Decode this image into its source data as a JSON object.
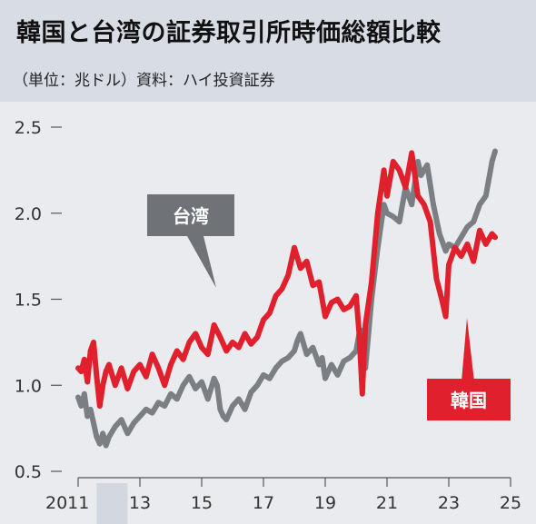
{
  "header": {
    "title": "韓国と台湾の証券取引所時価総額比較",
    "subtitle": "（単位：兆ドル）資料：ハイ投資証券"
  },
  "colors": {
    "korea": "#e0202c",
    "taiwan": "#7b7f84",
    "korea_box": "#e0202c",
    "taiwan_box": "#6f7377"
  },
  "chart_data": {
    "type": "line",
    "title": "韓国と台湾の証券取引所時価総額比較",
    "ylabel": "",
    "xlabel": "",
    "xlim": [
      2011,
      2025.2
    ],
    "ylim": [
      0.5,
      2.5
    ],
    "x_ticks": [
      2011,
      2013,
      2015,
      2017,
      2019,
      2021,
      2023,
      2025
    ],
    "x_tick_labels": [
      "2011",
      "13",
      "15",
      "17",
      "19",
      "21",
      "23",
      "25"
    ],
    "y_ticks": [
      0.5,
      1.0,
      1.5,
      2.0,
      2.5
    ],
    "y_tick_labels": [
      "0.5",
      "1.0",
      "1.5",
      "2.0",
      "2.5"
    ],
    "grid": false,
    "series": [
      {
        "name": "台湾",
        "x": [
          2011.0,
          2011.1,
          2011.2,
          2011.3,
          2011.4,
          2011.5,
          2011.6,
          2011.7,
          2011.8,
          2011.9,
          2012.0,
          2012.2,
          2012.4,
          2012.6,
          2012.8,
          2013.0,
          2013.2,
          2013.4,
          2013.6,
          2013.8,
          2014.0,
          2014.2,
          2014.4,
          2014.6,
          2014.8,
          2015.0,
          2015.2,
          2015.4,
          2015.5,
          2015.6,
          2015.7,
          2015.8,
          2016.0,
          2016.2,
          2016.4,
          2016.6,
          2016.8,
          2017.0,
          2017.2,
          2017.4,
          2017.6,
          2017.8,
          2018.0,
          2018.1,
          2018.2,
          2018.4,
          2018.6,
          2018.8,
          2018.9,
          2019.0,
          2019.2,
          2019.4,
          2019.6,
          2019.8,
          2020.0,
          2020.1,
          2020.2,
          2020.3,
          2020.5,
          2020.7,
          2020.9,
          2021.0,
          2021.2,
          2021.4,
          2021.6,
          2021.8,
          2022.0,
          2022.1,
          2022.3,
          2022.5,
          2022.7,
          2022.9,
          2023.0,
          2023.2,
          2023.4,
          2023.6,
          2023.8,
          2024.0,
          2024.2,
          2024.4,
          2024.5
        ],
        "values": [
          0.93,
          0.88,
          0.95,
          0.82,
          0.86,
          0.78,
          0.7,
          0.66,
          0.72,
          0.65,
          0.7,
          0.76,
          0.8,
          0.72,
          0.78,
          0.82,
          0.86,
          0.84,
          0.9,
          0.88,
          0.95,
          0.92,
          1.0,
          1.05,
          0.98,
          1.02,
          0.92,
          1.04,
          1.0,
          0.86,
          0.82,
          0.8,
          0.88,
          0.92,
          0.86,
          0.96,
          1.0,
          1.06,
          1.04,
          1.1,
          1.14,
          1.16,
          1.2,
          1.26,
          1.3,
          1.18,
          1.22,
          1.12,
          1.16,
          1.04,
          1.12,
          1.06,
          1.14,
          1.16,
          1.2,
          1.3,
          1.32,
          1.1,
          1.5,
          1.8,
          2.05,
          2.0,
          1.98,
          1.95,
          2.15,
          2.05,
          2.3,
          2.22,
          2.28,
          2.05,
          1.88,
          1.78,
          1.82,
          1.8,
          1.86,
          1.92,
          1.95,
          2.05,
          2.1,
          2.3,
          2.36
        ]
      },
      {
        "name": "韓国",
        "x": [
          2011.0,
          2011.1,
          2011.2,
          2011.3,
          2011.4,
          2011.5,
          2011.6,
          2011.7,
          2011.8,
          2011.9,
          2012.0,
          2012.2,
          2012.4,
          2012.6,
          2012.8,
          2013.0,
          2013.2,
          2013.4,
          2013.6,
          2013.8,
          2014.0,
          2014.2,
          2014.4,
          2014.6,
          2014.8,
          2015.0,
          2015.2,
          2015.4,
          2015.6,
          2015.8,
          2016.0,
          2016.2,
          2016.4,
          2016.6,
          2016.8,
          2017.0,
          2017.2,
          2017.4,
          2017.6,
          2017.8,
          2018.0,
          2018.2,
          2018.4,
          2018.6,
          2018.8,
          2019.0,
          2019.2,
          2019.4,
          2019.6,
          2019.8,
          2020.0,
          2020.1,
          2020.2,
          2020.3,
          2020.5,
          2020.7,
          2020.9,
          2021.0,
          2021.2,
          2021.4,
          2021.6,
          2021.8,
          2022.0,
          2022.2,
          2022.4,
          2022.6,
          2022.8,
          2022.9,
          2023.0,
          2023.2,
          2023.4,
          2023.6,
          2023.8,
          2024.0,
          2024.2,
          2024.4,
          2024.5
        ],
        "values": [
          1.1,
          1.08,
          1.15,
          1.02,
          1.2,
          1.25,
          1.05,
          0.88,
          1.0,
          1.08,
          1.12,
          1.0,
          1.1,
          0.98,
          1.08,
          1.12,
          1.05,
          1.18,
          1.1,
          1.0,
          1.12,
          1.2,
          1.15,
          1.25,
          1.3,
          1.22,
          1.18,
          1.35,
          1.28,
          1.2,
          1.25,
          1.22,
          1.3,
          1.24,
          1.28,
          1.38,
          1.42,
          1.52,
          1.56,
          1.64,
          1.8,
          1.68,
          1.72,
          1.58,
          1.6,
          1.4,
          1.48,
          1.5,
          1.44,
          1.46,
          1.52,
          1.3,
          0.95,
          1.35,
          1.6,
          2.0,
          2.25,
          2.1,
          2.3,
          2.25,
          2.15,
          2.35,
          2.1,
          2.05,
          1.95,
          1.62,
          1.48,
          1.4,
          1.7,
          1.8,
          1.75,
          1.82,
          1.72,
          1.9,
          1.82,
          1.88,
          1.86
        ]
      }
    ],
    "annotations": [
      {
        "text": "台湾",
        "series": "台湾"
      },
      {
        "text": "韓国",
        "series": "韓国"
      }
    ]
  }
}
